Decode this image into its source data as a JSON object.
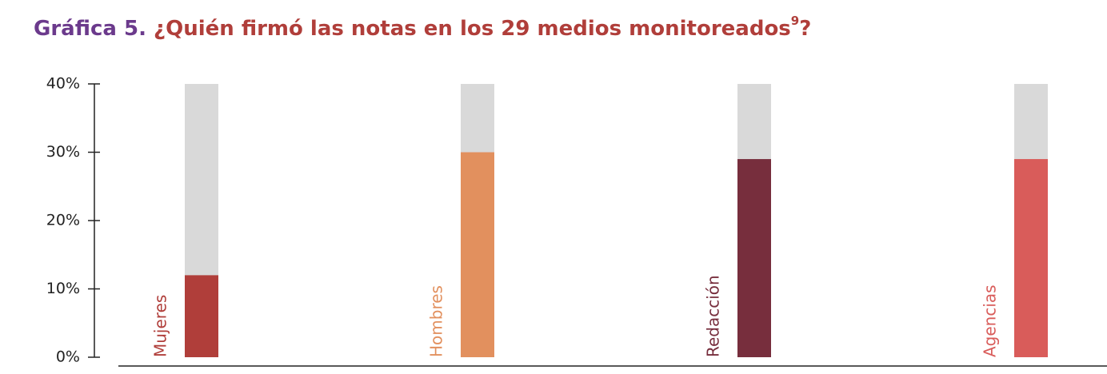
{
  "chart_data": {
    "type": "bar",
    "title_prefix": "Gráfica 5.",
    "title": "¿Quién firmó las notas en los 29 medios monitoreados",
    "title_note": "9",
    "title_end": "?",
    "categories": [
      "Mujeres",
      "Hombres",
      "Redacción",
      "Agencias"
    ],
    "values": [
      12,
      30,
      29,
      29
    ],
    "colors": [
      "#b03e3a",
      "#e2905e",
      "#772e3d",
      "#d95c5a"
    ],
    "track_color": "#d9d9d9",
    "ylim": [
      0,
      40
    ],
    "yticks": [
      {
        "value": 0,
        "label": "0%"
      },
      {
        "value": 10,
        "label": "10%"
      },
      {
        "value": 20,
        "label": "20%"
      },
      {
        "value": 30,
        "label": "30%"
      },
      {
        "value": 40,
        "label": "40%"
      }
    ]
  }
}
